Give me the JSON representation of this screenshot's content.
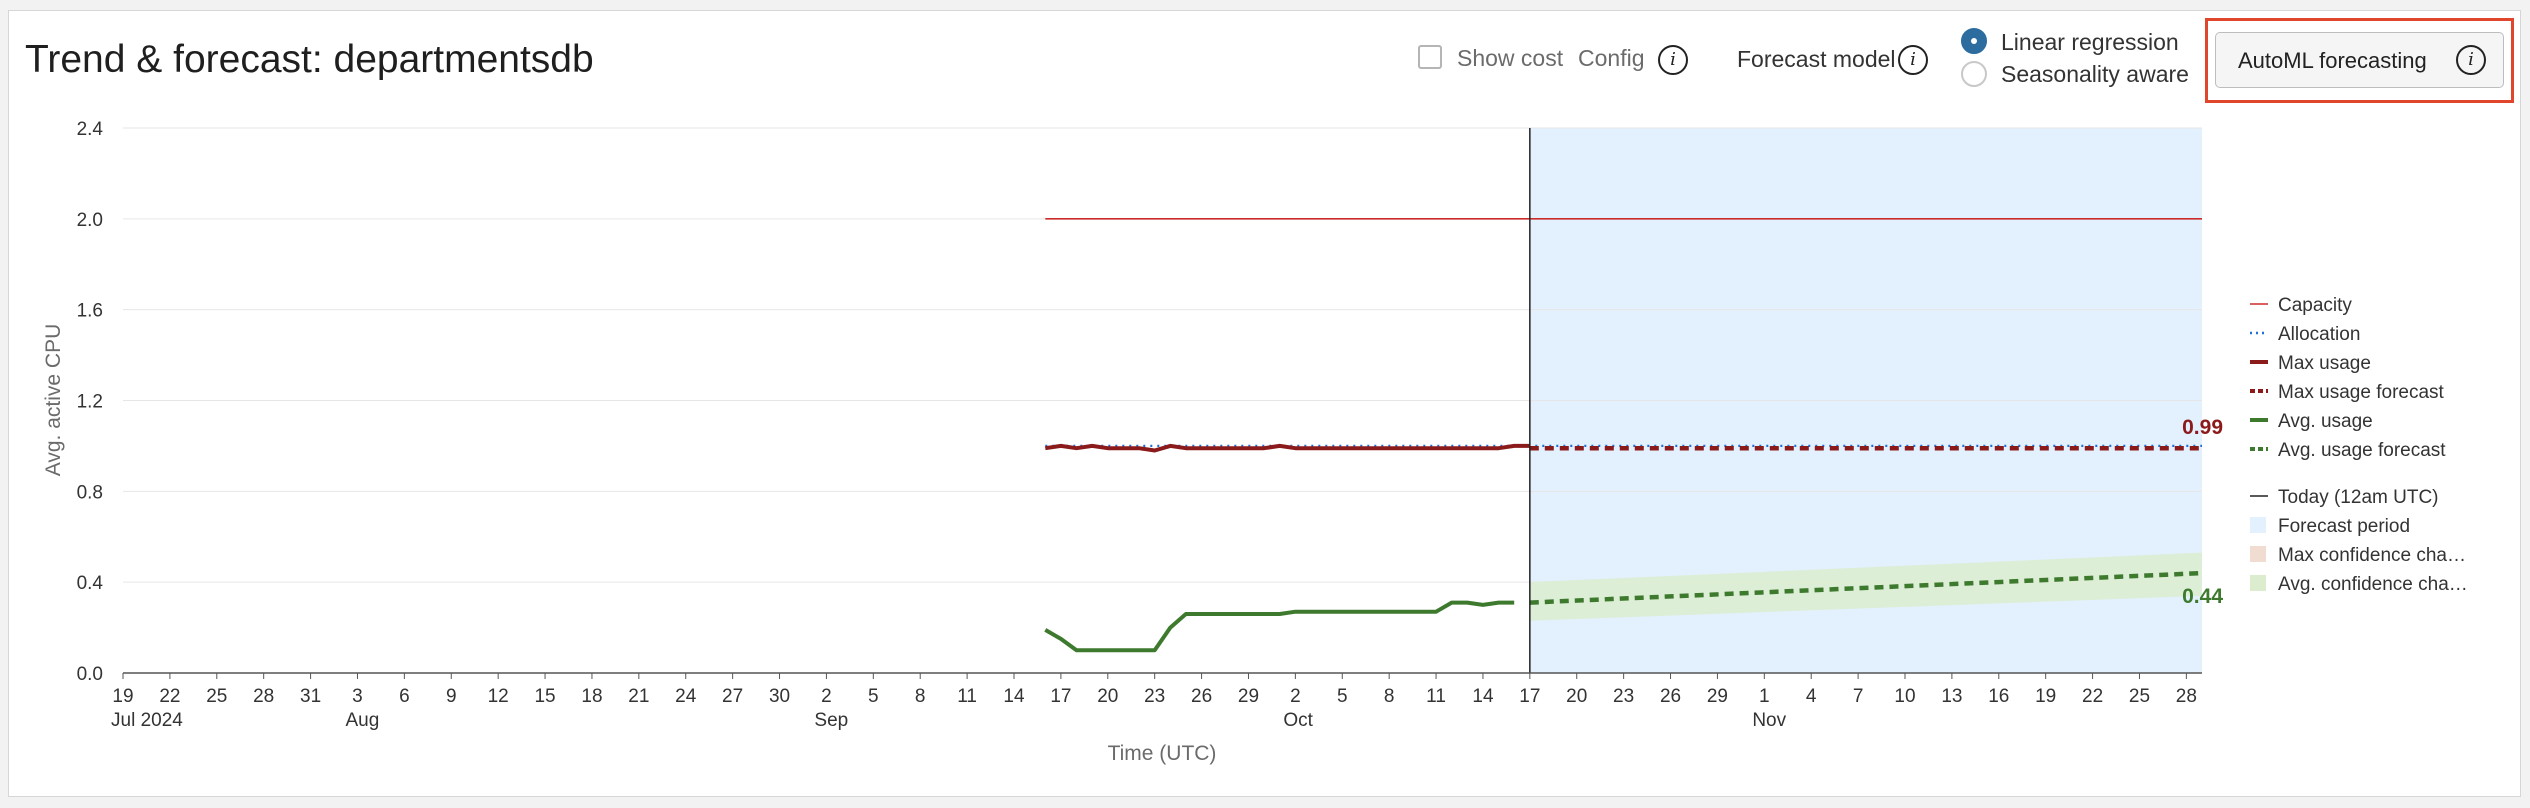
{
  "header": {
    "title": "Trend & forecast: departmentsdb",
    "show_cost_label": "Show cost",
    "config_label": "Config",
    "forecast_model_label": "Forecast model",
    "options": [
      "Linear regression",
      "Seasonality aware"
    ],
    "selected_option": "Linear regression",
    "automl_button": "AutoML forecasting",
    "info_glyph": "i"
  },
  "colors": {
    "capacity": "#cc2b2b",
    "allocation": "#1f6fd6",
    "max_usage": "#8b1a1a",
    "avg_usage": "#3d7a2e",
    "forecast_bg": "#e3f0fd",
    "avg_band": "#dcedcf",
    "max_band": "#f0dcd0",
    "highlight": "#e0462c"
  },
  "chart_data": {
    "type": "line",
    "ylabel": "Avg. active CPU",
    "xlabel": "Time (UTC)",
    "ylim": [
      0,
      2.4
    ],
    "yticks": [
      "0.0",
      "0.4",
      "0.8",
      "1.2",
      "1.6",
      "2.0",
      "2.4"
    ],
    "x_range": [
      "2024-07-19",
      "2024-11-29"
    ],
    "x_ticks": [
      {
        "date": "2024-07-19",
        "label": "19",
        "sub": "Jul 2024"
      },
      {
        "date": "2024-07-22",
        "label": "22"
      },
      {
        "date": "2024-07-25",
        "label": "25"
      },
      {
        "date": "2024-07-28",
        "label": "28"
      },
      {
        "date": "2024-07-31",
        "label": "31"
      },
      {
        "date": "2024-08-03",
        "label": "3",
        "sub": "Aug"
      },
      {
        "date": "2024-08-06",
        "label": "6"
      },
      {
        "date": "2024-08-09",
        "label": "9"
      },
      {
        "date": "2024-08-12",
        "label": "12"
      },
      {
        "date": "2024-08-15",
        "label": "15"
      },
      {
        "date": "2024-08-18",
        "label": "18"
      },
      {
        "date": "2024-08-21",
        "label": "21"
      },
      {
        "date": "2024-08-24",
        "label": "24"
      },
      {
        "date": "2024-08-27",
        "label": "27"
      },
      {
        "date": "2024-08-30",
        "label": "30"
      },
      {
        "date": "2024-09-02",
        "label": "2",
        "sub": "Sep"
      },
      {
        "date": "2024-09-05",
        "label": "5"
      },
      {
        "date": "2024-09-08",
        "label": "8"
      },
      {
        "date": "2024-09-11",
        "label": "11"
      },
      {
        "date": "2024-09-14",
        "label": "14"
      },
      {
        "date": "2024-09-17",
        "label": "17"
      },
      {
        "date": "2024-09-20",
        "label": "20"
      },
      {
        "date": "2024-09-23",
        "label": "23"
      },
      {
        "date": "2024-09-26",
        "label": "26"
      },
      {
        "date": "2024-09-29",
        "label": "29"
      },
      {
        "date": "2024-10-02",
        "label": "2",
        "sub": "Oct"
      },
      {
        "date": "2024-10-05",
        "label": "5"
      },
      {
        "date": "2024-10-08",
        "label": "8"
      },
      {
        "date": "2024-10-11",
        "label": "11"
      },
      {
        "date": "2024-10-14",
        "label": "14"
      },
      {
        "date": "2024-10-17",
        "label": "17"
      },
      {
        "date": "2024-10-20",
        "label": "20"
      },
      {
        "date": "2024-10-23",
        "label": "23"
      },
      {
        "date": "2024-10-26",
        "label": "26"
      },
      {
        "date": "2024-10-29",
        "label": "29"
      },
      {
        "date": "2024-11-01",
        "label": "1",
        "sub": "Nov"
      },
      {
        "date": "2024-11-04",
        "label": "4"
      },
      {
        "date": "2024-11-07",
        "label": "7"
      },
      {
        "date": "2024-11-10",
        "label": "10"
      },
      {
        "date": "2024-11-13",
        "label": "13"
      },
      {
        "date": "2024-11-16",
        "label": "16"
      },
      {
        "date": "2024-11-19",
        "label": "19"
      },
      {
        "date": "2024-11-22",
        "label": "22"
      },
      {
        "date": "2024-11-25",
        "label": "25"
      },
      {
        "date": "2024-11-28",
        "label": "28"
      }
    ],
    "today": "2024-10-17",
    "forecast_period": [
      "2024-10-17",
      "2024-11-29"
    ],
    "series": [
      {
        "name": "Capacity",
        "style": "solid-thin",
        "points": [
          [
            "2024-09-16",
            2.0
          ],
          [
            "2024-11-29",
            2.0
          ]
        ]
      },
      {
        "name": "Allocation",
        "style": "dotted",
        "points": [
          [
            "2024-09-16",
            1.0
          ],
          [
            "2024-11-29",
            1.0
          ]
        ]
      },
      {
        "name": "Max usage",
        "style": "solid",
        "points": [
          [
            "2024-09-16",
            0.99
          ],
          [
            "2024-09-17",
            1.0
          ],
          [
            "2024-09-18",
            0.99
          ],
          [
            "2024-09-19",
            1.0
          ],
          [
            "2024-09-20",
            0.99
          ],
          [
            "2024-09-22",
            0.99
          ],
          [
            "2024-09-23",
            0.98
          ],
          [
            "2024-09-24",
            1.0
          ],
          [
            "2024-09-25",
            0.99
          ],
          [
            "2024-09-30",
            0.99
          ],
          [
            "2024-10-01",
            1.0
          ],
          [
            "2024-10-02",
            0.99
          ],
          [
            "2024-10-15",
            0.99
          ],
          [
            "2024-10-16",
            1.0
          ],
          [
            "2024-10-17",
            1.0
          ]
        ]
      },
      {
        "name": "Max usage forecast",
        "style": "dashed",
        "points": [
          [
            "2024-10-17",
            0.99
          ],
          [
            "2024-11-29",
            0.99
          ]
        ]
      },
      {
        "name": "Avg. usage",
        "style": "solid",
        "points": [
          [
            "2024-09-16",
            0.19
          ],
          [
            "2024-09-17",
            0.15
          ],
          [
            "2024-09-18",
            0.1
          ],
          [
            "2024-09-23",
            0.1
          ],
          [
            "2024-09-24",
            0.2
          ],
          [
            "2024-09-25",
            0.26
          ],
          [
            "2024-10-01",
            0.26
          ],
          [
            "2024-10-02",
            0.27
          ],
          [
            "2024-10-11",
            0.27
          ],
          [
            "2024-10-12",
            0.31
          ],
          [
            "2024-10-13",
            0.31
          ],
          [
            "2024-10-14",
            0.3
          ],
          [
            "2024-10-15",
            0.31
          ],
          [
            "2024-10-16",
            0.31
          ]
        ]
      },
      {
        "name": "Avg. usage forecast",
        "style": "dashed",
        "points": [
          [
            "2024-10-17",
            0.31
          ],
          [
            "2024-11-29",
            0.44
          ]
        ]
      }
    ],
    "avg_confidence_band": {
      "start": [
        0.23,
        0.4
      ],
      "end": [
        0.34,
        0.53
      ]
    },
    "annotations": [
      {
        "text": "0.99",
        "series": "Max usage forecast",
        "value": 0.99
      },
      {
        "text": "0.44",
        "series": "Avg. usage forecast",
        "value": 0.44
      }
    ],
    "legend_position": "right",
    "legend": [
      {
        "label": "Capacity",
        "swatch": "thin-line",
        "color_key": "capacity"
      },
      {
        "label": "Allocation",
        "swatch": "dotted",
        "color_key": "allocation"
      },
      {
        "label": "Max usage",
        "swatch": "thick-line",
        "color_key": "max_usage"
      },
      {
        "label": "Max usage forecast",
        "swatch": "dashed",
        "color_key": "max_usage"
      },
      {
        "label": "Avg. usage",
        "swatch": "thick-line",
        "color_key": "avg_usage"
      },
      {
        "label": "Avg. usage forecast",
        "swatch": "dashed",
        "color_key": "avg_usage"
      },
      {
        "label": "Today (12am UTC)",
        "swatch": "thin-black",
        "color_key": ""
      },
      {
        "label": "Forecast period",
        "swatch": "box",
        "color_key": "forecast_bg"
      },
      {
        "label": "Max confidence cha…",
        "swatch": "box",
        "color_key": "max_band"
      },
      {
        "label": "Avg. confidence cha…",
        "swatch": "box",
        "color_key": "avg_band"
      }
    ]
  }
}
